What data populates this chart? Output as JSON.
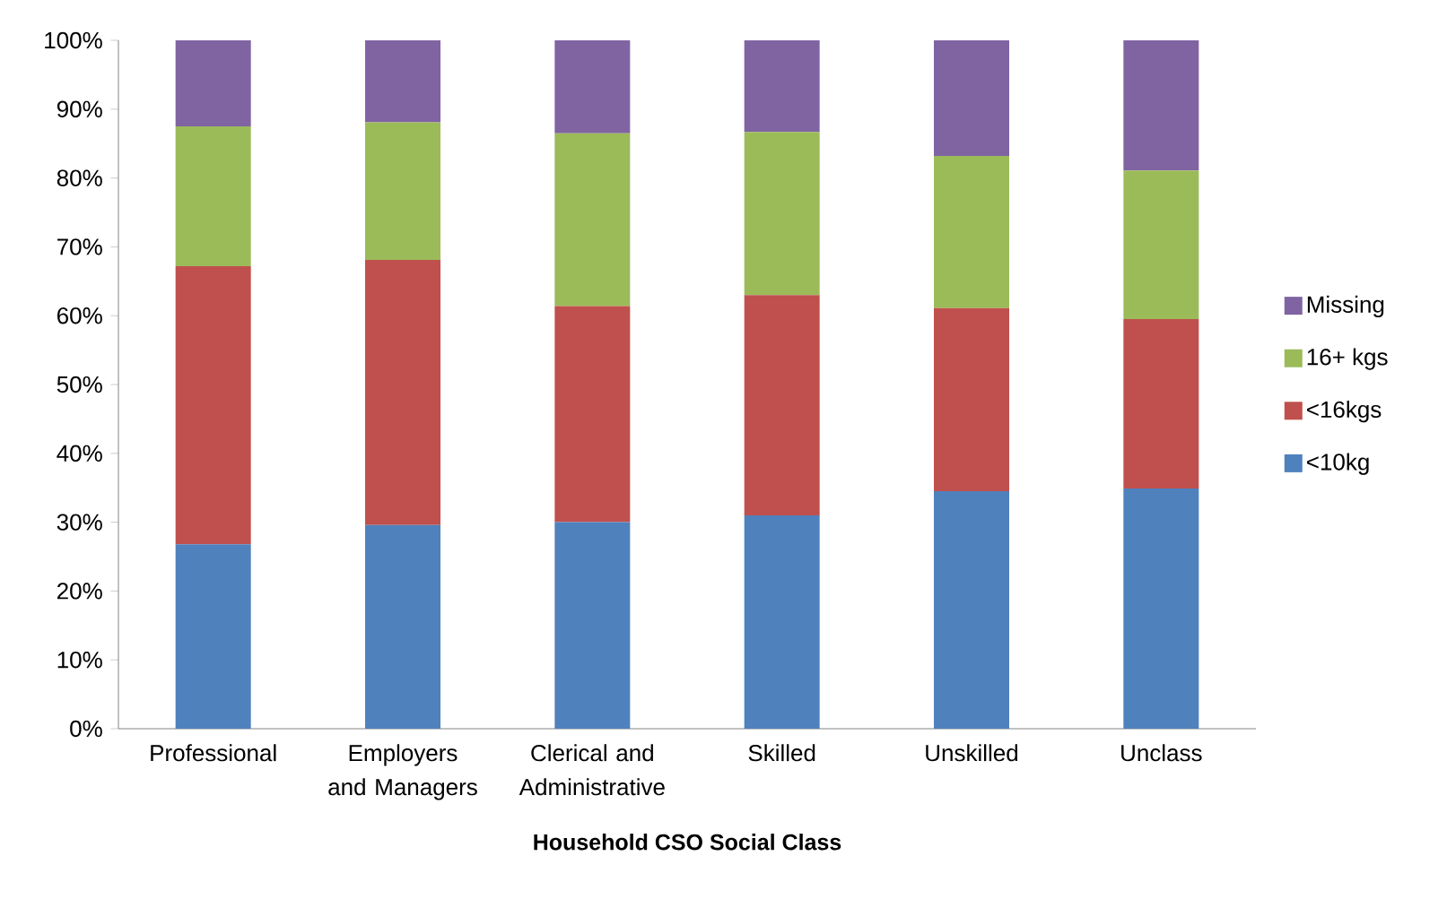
{
  "chart_data": {
    "type": "bar",
    "stacked": true,
    "xlabel": "Household CSO Social Class",
    "categories": [
      "Professional",
      "Employers and Managers",
      "Clerical and Administrative",
      "Skilled",
      "Unskilled",
      "Unclass"
    ],
    "series": [
      {
        "name": "<10kg",
        "color": "#4f81bd",
        "values": [
          26.8,
          29.6,
          30.0,
          31.0,
          34.5,
          34.9
        ]
      },
      {
        "name": "<16kgs",
        "color": "#c0504d",
        "values": [
          40.4,
          38.5,
          31.4,
          32.0,
          26.6,
          24.6
        ]
      },
      {
        "name": "16+ kgs",
        "color": "#9bbb59",
        "values": [
          20.3,
          20.0,
          25.1,
          23.7,
          22.1,
          21.6
        ]
      },
      {
        "name": "Missing",
        "color": "#8064a2",
        "values": [
          12.5,
          11.9,
          13.5,
          13.3,
          16.8,
          18.9
        ]
      }
    ],
    "ylim": [
      0,
      100
    ],
    "yticks": [
      {
        "value": 0,
        "label": "0%"
      },
      {
        "value": 10,
        "label": "10%"
      },
      {
        "value": 20,
        "label": "20%"
      },
      {
        "value": 30,
        "label": "30%"
      },
      {
        "value": 40,
        "label": "40%"
      },
      {
        "value": 50,
        "label": "50%"
      },
      {
        "value": 60,
        "label": "60%"
      },
      {
        "value": 70,
        "label": "70%"
      },
      {
        "value": 80,
        "label": "80%"
      },
      {
        "value": 90,
        "label": "90%"
      },
      {
        "value": 100,
        "label": "100%"
      }
    ],
    "grid": false,
    "legend": "right"
  }
}
